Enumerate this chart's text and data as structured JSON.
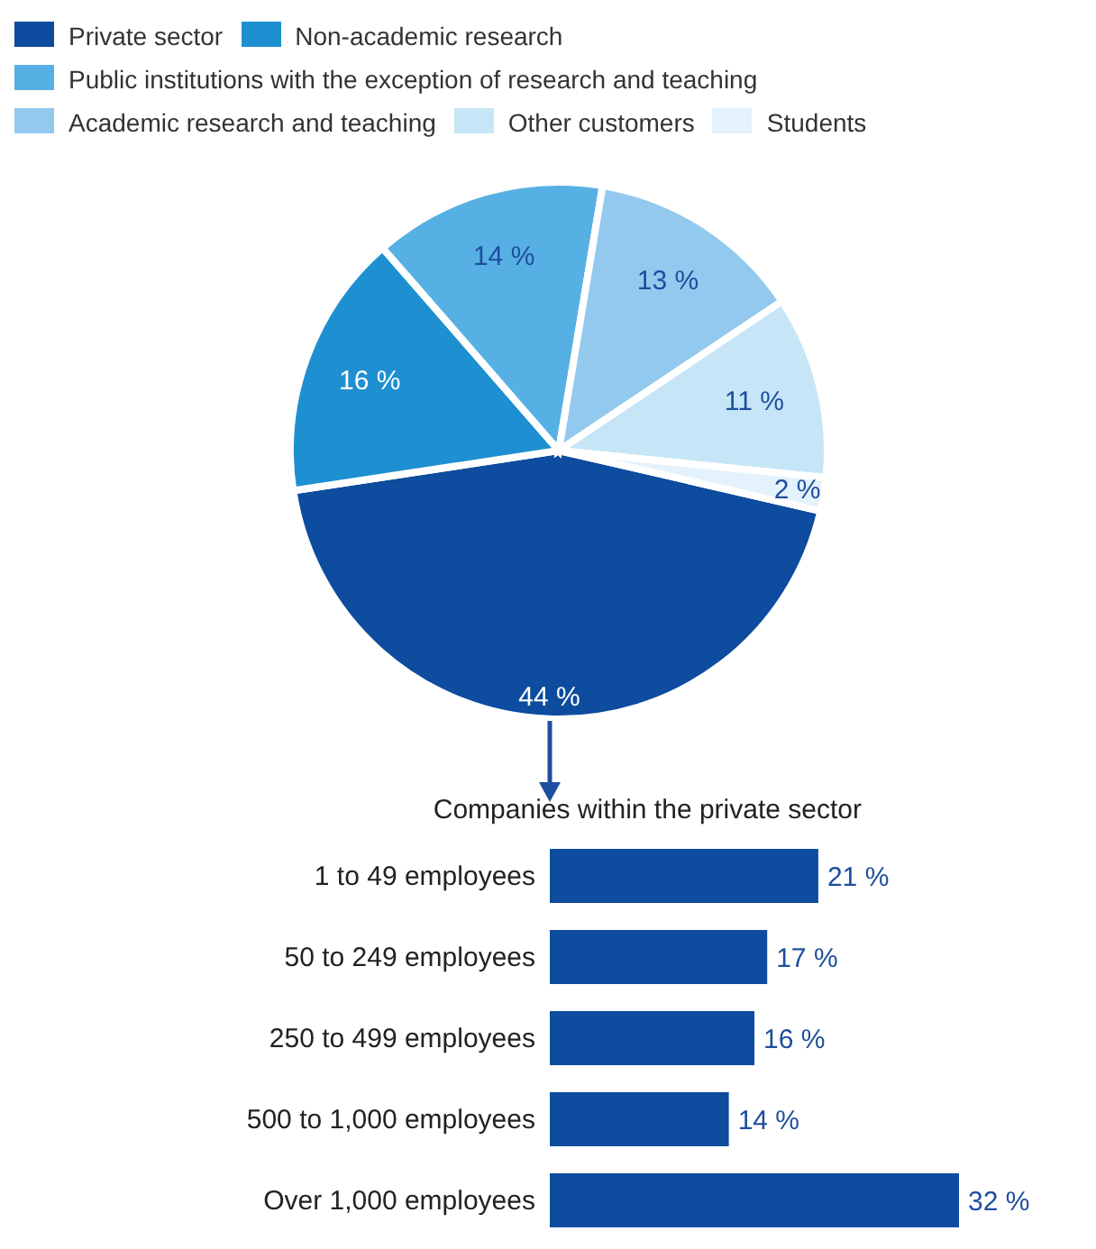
{
  "chart_data": [
    {
      "type": "pie",
      "categories": [
        "Private sector",
        "Non-academic research",
        "Public institutions with the exception of research and teaching",
        "Academic research and teaching",
        "Other customers",
        "Students"
      ],
      "values": [
        44,
        16,
        14,
        13,
        11,
        2
      ],
      "value_labels": [
        "44 %",
        "16 %",
        "14 %",
        "13 %",
        "11 %",
        "2 %"
      ],
      "colors": [
        "#0d4c9e",
        "#1e8fd0",
        "#57b0e3",
        "#93c9ee",
        "#c6e6f8",
        "#e3f2fc"
      ],
      "legend": "top"
    },
    {
      "type": "bar",
      "orientation": "horizontal",
      "title": "Companies within the private sector",
      "categories": [
        "1 to 49 employees",
        "50 to 249 employees",
        "250 to 499 employees",
        "500 to 1,000 employees",
        "Over 1,000 employees"
      ],
      "values": [
        21,
        17,
        16,
        14,
        32
      ],
      "value_labels": [
        "21 %",
        "17 %",
        "16 %",
        "14 %",
        "32 %"
      ],
      "color": "#0d4c9e"
    }
  ]
}
